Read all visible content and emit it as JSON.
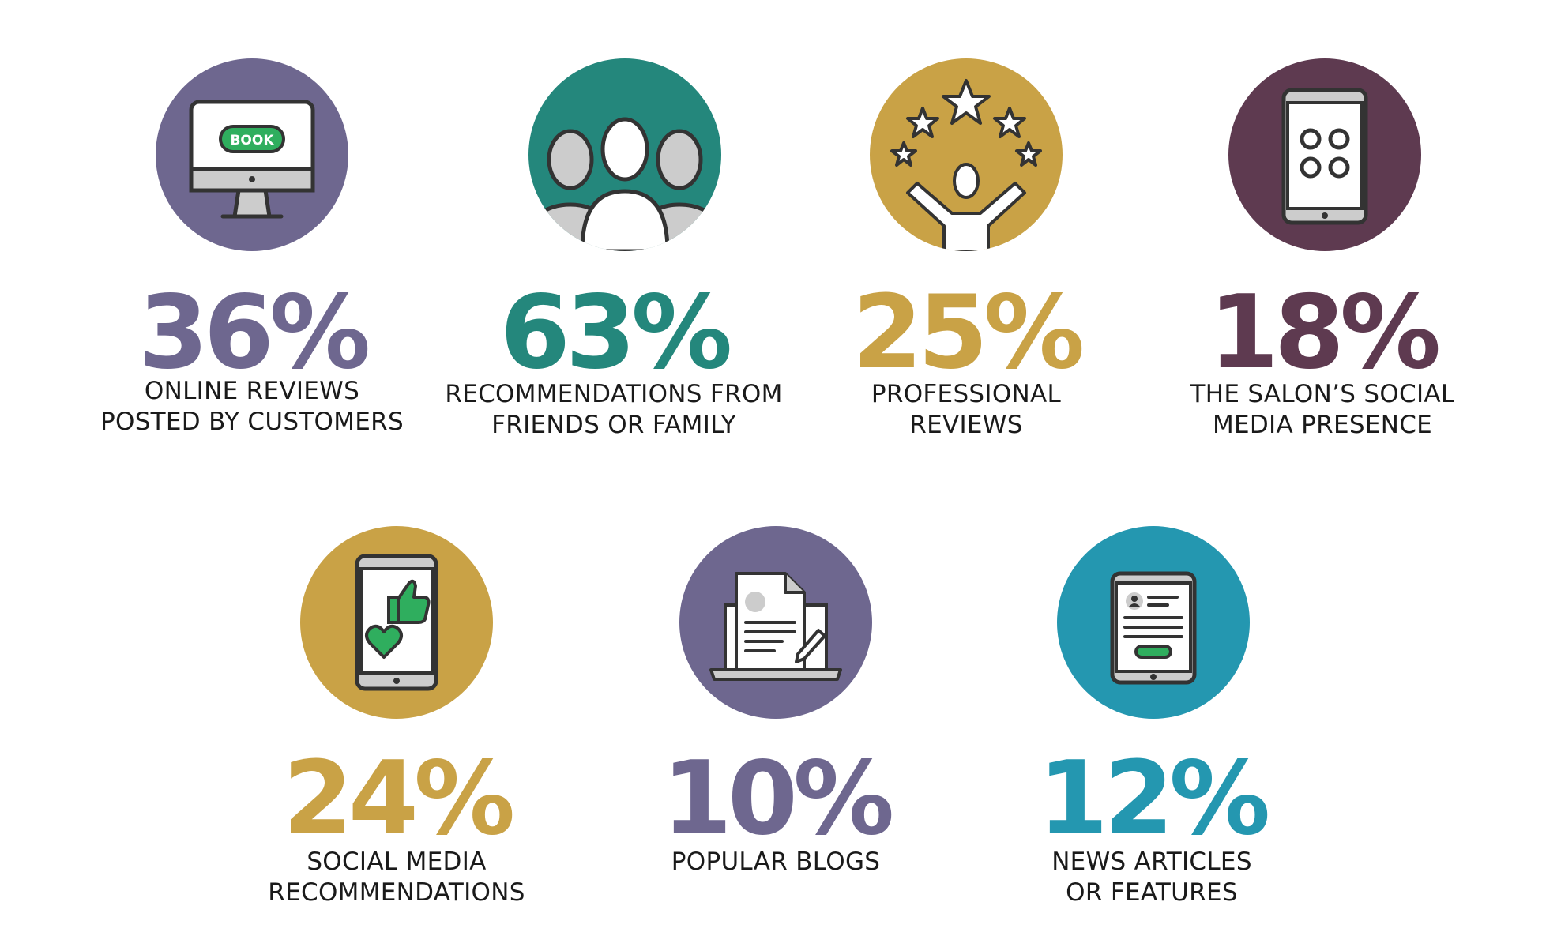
{
  "colors": {
    "purple": "#6e678f",
    "teal": "#24877c",
    "gold": "#c9a246",
    "plum": "#5e3a50",
    "blue": "#2497b0",
    "green": "#2fae5e",
    "dark": "#333333"
  },
  "stats": [
    {
      "percent": "36%",
      "line1": "ONLINE REVIEWS",
      "line2": "POSTED BY CUSTOMERS",
      "icon": "desktop-book-icon",
      "icon_text": "BOOK",
      "color": "purple"
    },
    {
      "percent": "63%",
      "line1": "RECOMMENDATIONS FROM",
      "line2": "FRIENDS OR FAMILY",
      "icon": "group-people-icon",
      "color": "teal"
    },
    {
      "percent": "25%",
      "line1": "PROFESSIONAL",
      "line2": "REVIEWS",
      "icon": "person-stars-icon",
      "color": "gold"
    },
    {
      "percent": "18%",
      "line1": "THE SALON’S SOCIAL",
      "line2": "MEDIA PRESENCE",
      "icon": "phone-apps-icon",
      "color": "plum"
    },
    {
      "percent": "24%",
      "line1": "SOCIAL MEDIA",
      "line2": "RECOMMENDATIONS",
      "icon": "phone-like-heart-icon",
      "color": "gold"
    },
    {
      "percent": "10%",
      "line1": "POPULAR BLOGS",
      "line2": "",
      "icon": "laptop-document-icon",
      "color": "purple"
    },
    {
      "percent": "12%",
      "line1": "NEWS ARTICLES",
      "line2": "OR FEATURES",
      "icon": "tablet-article-icon",
      "color": "blue"
    }
  ]
}
